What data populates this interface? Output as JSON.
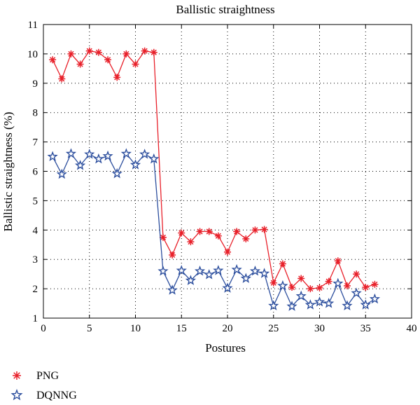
{
  "chart_data": {
    "type": "line",
    "title": "Ballistic straightness",
    "xlabel": "Postures",
    "ylabel": "Ballistic straightness (%)",
    "xlim": [
      0,
      40
    ],
    "ylim": [
      1,
      11
    ],
    "xticks": [
      0,
      5,
      10,
      15,
      20,
      25,
      30,
      35,
      40
    ],
    "yticks": [
      1,
      2,
      3,
      4,
      5,
      6,
      7,
      8,
      9,
      10,
      11
    ],
    "grid": true,
    "legend_position": "bottom-left, below plot",
    "x": [
      1,
      2,
      3,
      4,
      5,
      6,
      7,
      8,
      9,
      10,
      11,
      12,
      13,
      14,
      15,
      16,
      17,
      18,
      19,
      20,
      21,
      22,
      23,
      24,
      25,
      26,
      27,
      28,
      29,
      30,
      31,
      32,
      33,
      34,
      35,
      36
    ],
    "series": [
      {
        "name": "PNG",
        "color": "#e8202a",
        "marker": "asterisk",
        "values": [
          9.8,
          9.15,
          10.0,
          9.65,
          10.1,
          10.05,
          9.8,
          9.2,
          10.0,
          9.65,
          10.1,
          10.05,
          3.75,
          3.15,
          3.9,
          3.6,
          3.95,
          3.95,
          3.8,
          3.25,
          3.95,
          3.7,
          4.0,
          4.02,
          2.2,
          2.85,
          2.05,
          2.35,
          2.0,
          2.03,
          2.25,
          2.95,
          2.1,
          2.5,
          2.05,
          2.15
        ]
      },
      {
        "name": "DQNNG",
        "color": "#2d4f9e",
        "marker": "star",
        "values": [
          6.5,
          5.9,
          6.6,
          6.2,
          6.58,
          6.42,
          6.52,
          5.92,
          6.6,
          6.22,
          6.58,
          6.42,
          2.6,
          1.95,
          2.62,
          2.28,
          2.6,
          2.48,
          2.62,
          2.02,
          2.65,
          2.35,
          2.6,
          2.52,
          1.42,
          2.1,
          1.4,
          1.75,
          1.45,
          1.55,
          1.5,
          2.18,
          1.42,
          1.85,
          1.45,
          1.65
        ]
      }
    ]
  }
}
